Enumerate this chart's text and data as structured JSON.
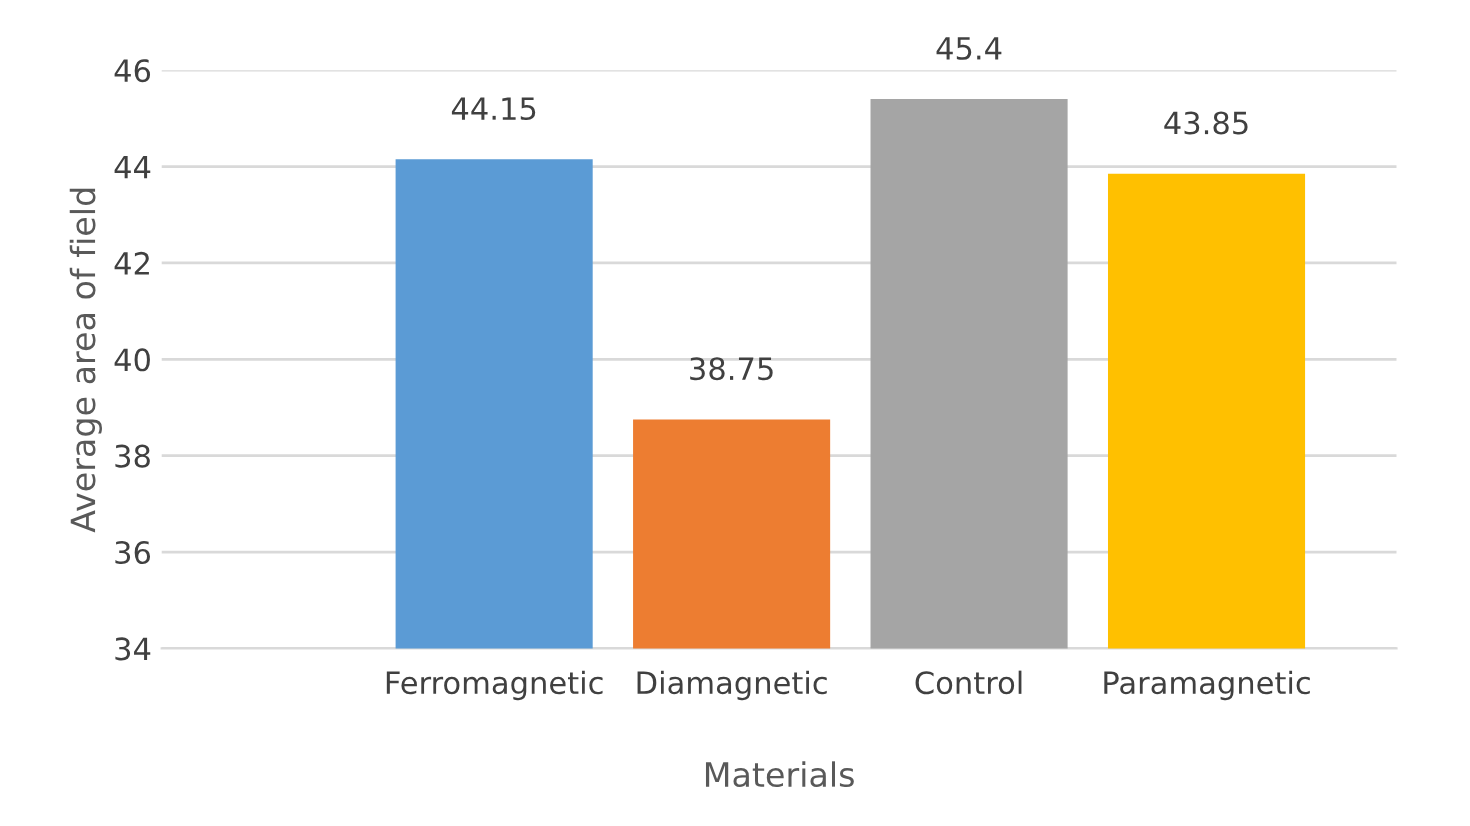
{
  "chart_data": {
    "type": "bar",
    "xlabel": "Materials",
    "ylabel": "Average area of field",
    "categories": [
      "Ferromagnetic",
      "Diamagnetic",
      "Control",
      "Paramagnetic"
    ],
    "values": [
      44.15,
      38.75,
      45.4,
      43.85
    ],
    "colors": [
      "#5b9bd5",
      "#ed7d31",
      "#a5a5a5",
      "#ffc000"
    ],
    "ylim": [
      34,
      46
    ],
    "yticks": [
      34,
      36,
      38,
      40,
      42,
      44,
      46
    ],
    "grid": "y",
    "data_labels": true
  }
}
